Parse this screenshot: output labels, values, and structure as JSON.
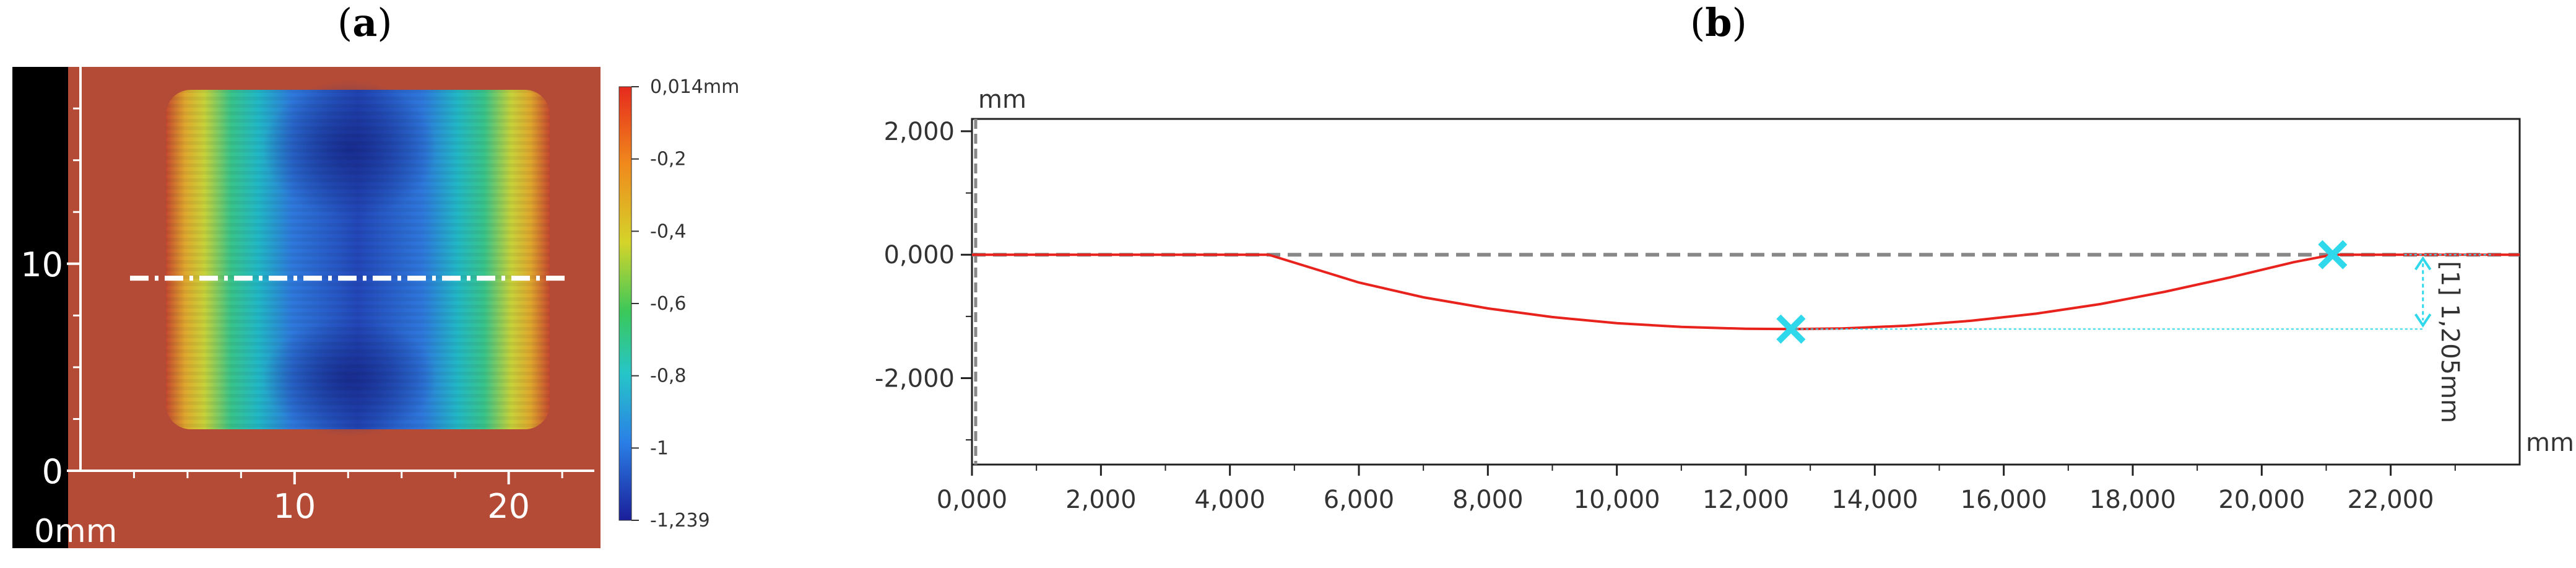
{
  "panels": {
    "a": {
      "label": "a"
    },
    "b": {
      "label": "b"
    }
  },
  "chart_data": [
    {
      "type": "heatmap",
      "panel": "a",
      "x_origin_label": "0mm",
      "x_ticks": [
        10,
        20
      ],
      "y_ticks": [
        0,
        10
      ],
      "xlim": [
        0,
        24
      ],
      "ylim": [
        0,
        19
      ],
      "profile_line_y": 9.3,
      "colorbar": {
        "ticks": [
          "0,014mm",
          "-0,2",
          "-0,4",
          "-0,6",
          "-0,8",
          "-1",
          "-1,239"
        ],
        "min": -1.239,
        "max": 0.014
      },
      "colors": {
        "background": "#b44b36",
        "deep": "#1d3aa8",
        "low": "#2f7ee0",
        "mid": "#26c6b0",
        "high": "#d8cf2d",
        "line": "#ffffff"
      }
    },
    {
      "type": "line",
      "panel": "b",
      "xlabel": "mm",
      "ylabel": "mm",
      "xlim": [
        0,
        24000
      ],
      "ylim": [
        -3400,
        2200
      ],
      "x_ticks": [
        0,
        2000,
        4000,
        6000,
        8000,
        10000,
        12000,
        14000,
        16000,
        18000,
        20000,
        22000
      ],
      "x_tick_labels": [
        "0,000",
        "2,000",
        "4,000",
        "6,000",
        "8,000",
        "10,000",
        "12,000",
        "14,000",
        "16,000",
        "18,000",
        "20,000",
        "22,000"
      ],
      "y_ticks": [
        2000,
        0,
        -2000
      ],
      "y_tick_labels": [
        "2,000",
        "0,000",
        "-2,000"
      ],
      "series": [
        {
          "color": "#e8221c",
          "x": [
            0,
            4600,
            6000,
            7000,
            8000,
            9000,
            10000,
            11000,
            12000,
            12700,
            13500,
            14500,
            15500,
            16500,
            17500,
            18500,
            19500,
            20500,
            21100,
            22000,
            23000,
            24000
          ],
          "y": [
            0,
            0,
            -450,
            -690,
            -870,
            -1010,
            -1110,
            -1170,
            -1200,
            -1205,
            -1195,
            -1150,
            -1070,
            -955,
            -800,
            -600,
            -370,
            -120,
            0,
            0,
            0,
            0
          ]
        }
      ],
      "reference_line": {
        "y": 0,
        "color": "#888888"
      },
      "markers": [
        {
          "x": 12700,
          "y": -1205,
          "color": "#2fd8ea"
        },
        {
          "x": 21100,
          "y": 0,
          "color": "#2fd8ea"
        }
      ],
      "annotation": {
        "text": "[1] 1,205mm",
        "x": 22500,
        "from": 0,
        "to": -1205
      }
    }
  ]
}
